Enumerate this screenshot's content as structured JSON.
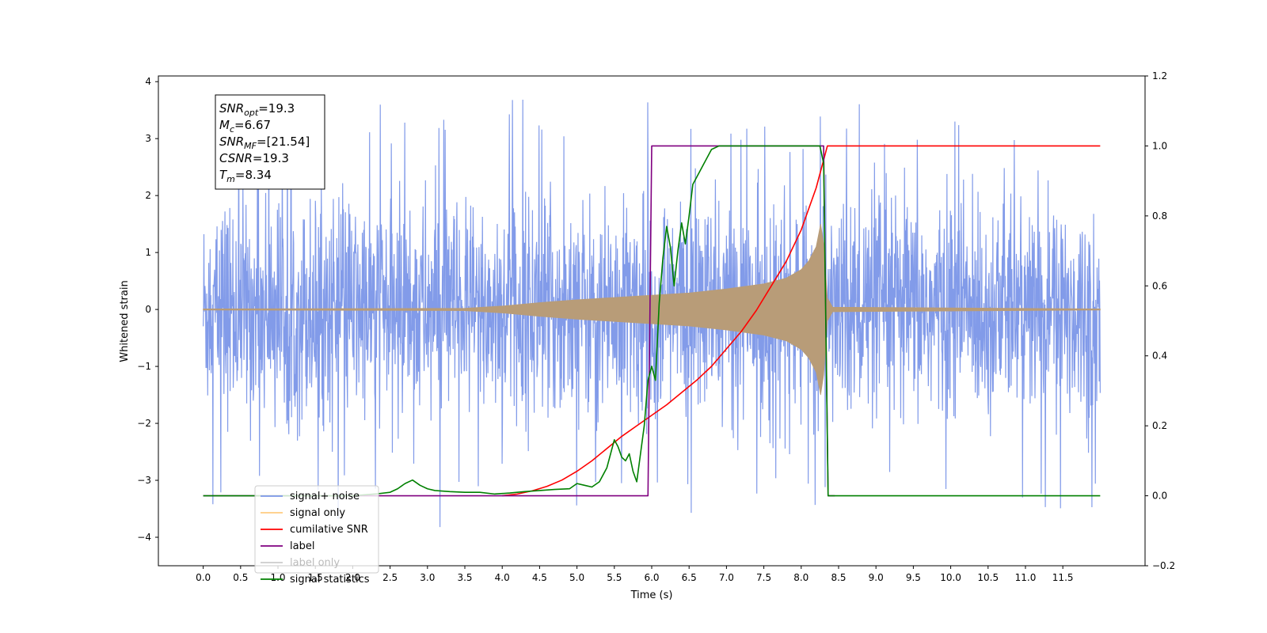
{
  "chart_data": {
    "type": "line",
    "xlabel": "Time (s)",
    "ylabel": "Whitened strain",
    "xlim": [
      -0.6,
      12.6
    ],
    "ylim": [
      -4.5,
      4.1
    ],
    "y2lim": [
      -0.2,
      1.2
    ],
    "x_ticks": [
      "0.0",
      "0.5",
      "1.0",
      "1.5",
      "2.0",
      "2.5",
      "3.0",
      "3.5",
      "4.0",
      "4.5",
      "5.0",
      "5.5",
      "6.0",
      "6.5",
      "7.0",
      "7.5",
      "8.0",
      "8.5",
      "9.0",
      "9.5",
      "10.0",
      "10.5",
      "11.0",
      "11.5"
    ],
    "y_ticks": [
      "4",
      "3",
      "2",
      "1",
      "0",
      "−1",
      "−2",
      "−3",
      "−4"
    ],
    "y2_ticks": [
      "1.2",
      "1.0",
      "0.8",
      "0.6",
      "0.4",
      "0.2",
      "0.0",
      "−0.2"
    ],
    "annotation": {
      "lines": [
        {
          "sym": "SNR",
          "sub": "opt",
          "val": "=19.3"
        },
        {
          "sym": "M",
          "sub": "c",
          "val": "=6.67"
        },
        {
          "sym": "SNR",
          "sub": "MF",
          "val": "=[21.54]"
        },
        {
          "sym": "CSNR",
          "sub": "",
          "val": "=19.3"
        },
        {
          "sym": "T",
          "sub": "m",
          "val": "=8.34"
        }
      ]
    },
    "legend": {
      "position": "lower-left",
      "entries": [
        {
          "label": "signal+ noise",
          "color": "#7b96e8"
        },
        {
          "label": "signal only",
          "color": "#ffcc80"
        },
        {
          "label": "cumilative SNR",
          "color": "#ff0000"
        },
        {
          "label": "label",
          "color": "#800080"
        },
        {
          "label": "label only",
          "color": "#cccccc"
        },
        {
          "label": "signal statistics",
          "color": "#008000"
        }
      ]
    },
    "series": [
      {
        "name": "signal+ noise",
        "axis": "left",
        "style": "noise",
        "x_range": [
          0.0,
          12.0
        ],
        "sigma": 1.0,
        "peak_max": 3.7,
        "peak_min": -3.9,
        "color": "#7b96e8"
      },
      {
        "name": "signal only",
        "axis": "left",
        "style": "envelope",
        "color": "#b89c78",
        "envelope": [
          [
            0.0,
            0.01
          ],
          [
            3.5,
            0.02
          ],
          [
            4.0,
            0.06
          ],
          [
            4.5,
            0.12
          ],
          [
            5.0,
            0.17
          ],
          [
            5.5,
            0.21
          ],
          [
            6.0,
            0.25
          ],
          [
            6.5,
            0.29
          ],
          [
            7.0,
            0.36
          ],
          [
            7.5,
            0.45
          ],
          [
            7.8,
            0.55
          ],
          [
            8.0,
            0.7
          ],
          [
            8.1,
            0.85
          ],
          [
            8.2,
            1.1
          ],
          [
            8.26,
            1.5
          ],
          [
            8.3,
            1.15
          ],
          [
            8.35,
            0.2
          ],
          [
            8.42,
            0.04
          ],
          [
            12.0,
            0.01
          ]
        ]
      },
      {
        "name": "cumilative SNR",
        "axis": "right",
        "color": "#ff0000",
        "x": [
          4.0,
          4.2,
          4.4,
          4.6,
          4.8,
          5.0,
          5.2,
          5.4,
          5.6,
          5.8,
          6.0,
          6.2,
          6.4,
          6.6,
          6.8,
          7.0,
          7.2,
          7.4,
          7.6,
          7.8,
          8.0,
          8.1,
          8.2,
          8.3,
          8.35,
          12.0
        ],
        "values": [
          0.0,
          0.005,
          0.014,
          0.027,
          0.045,
          0.07,
          0.1,
          0.135,
          0.17,
          0.2,
          0.23,
          0.26,
          0.295,
          0.33,
          0.37,
          0.42,
          0.47,
          0.53,
          0.6,
          0.67,
          0.76,
          0.82,
          0.88,
          0.96,
          1.0,
          1.0
        ]
      },
      {
        "name": "label",
        "axis": "right",
        "color": "#800080",
        "x": [
          0.0,
          5.95,
          6.0,
          8.3,
          8.36,
          8.45
        ],
        "values": [
          0.0,
          0.0,
          1.0,
          1.0,
          0.0,
          0.0
        ]
      },
      {
        "name": "signal statistics",
        "axis": "right",
        "color": "#008000",
        "x": [
          0.0,
          2.0,
          2.3,
          2.5,
          2.6,
          2.7,
          2.8,
          2.9,
          3.0,
          3.1,
          3.3,
          3.5,
          3.7,
          3.9,
          4.1,
          4.3,
          4.5,
          4.7,
          4.9,
          5.0,
          5.1,
          5.2,
          5.3,
          5.4,
          5.45,
          5.5,
          5.55,
          5.6,
          5.65,
          5.7,
          5.75,
          5.8,
          5.85,
          5.9,
          5.95,
          6.0,
          6.05,
          6.1,
          6.15,
          6.2,
          6.25,
          6.3,
          6.35,
          6.4,
          6.45,
          6.5,
          6.55,
          6.6,
          6.7,
          6.8,
          6.9,
          7.0,
          7.5,
          8.0,
          8.25,
          8.3,
          8.36,
          8.4,
          12.0
        ],
        "values": [
          0.0,
          0.0,
          0.005,
          0.01,
          0.02,
          0.035,
          0.045,
          0.03,
          0.02,
          0.015,
          0.012,
          0.01,
          0.01,
          0.005,
          0.008,
          0.012,
          0.015,
          0.018,
          0.02,
          0.035,
          0.03,
          0.025,
          0.04,
          0.08,
          0.12,
          0.16,
          0.14,
          0.11,
          0.1,
          0.12,
          0.07,
          0.04,
          0.12,
          0.2,
          0.33,
          0.37,
          0.33,
          0.55,
          0.68,
          0.77,
          0.71,
          0.6,
          0.7,
          0.78,
          0.72,
          0.8,
          0.89,
          0.91,
          0.95,
          0.99,
          1.0,
          1.0,
          1.0,
          1.0,
          1.0,
          0.95,
          0.0,
          0.0,
          0.0
        ]
      }
    ]
  }
}
